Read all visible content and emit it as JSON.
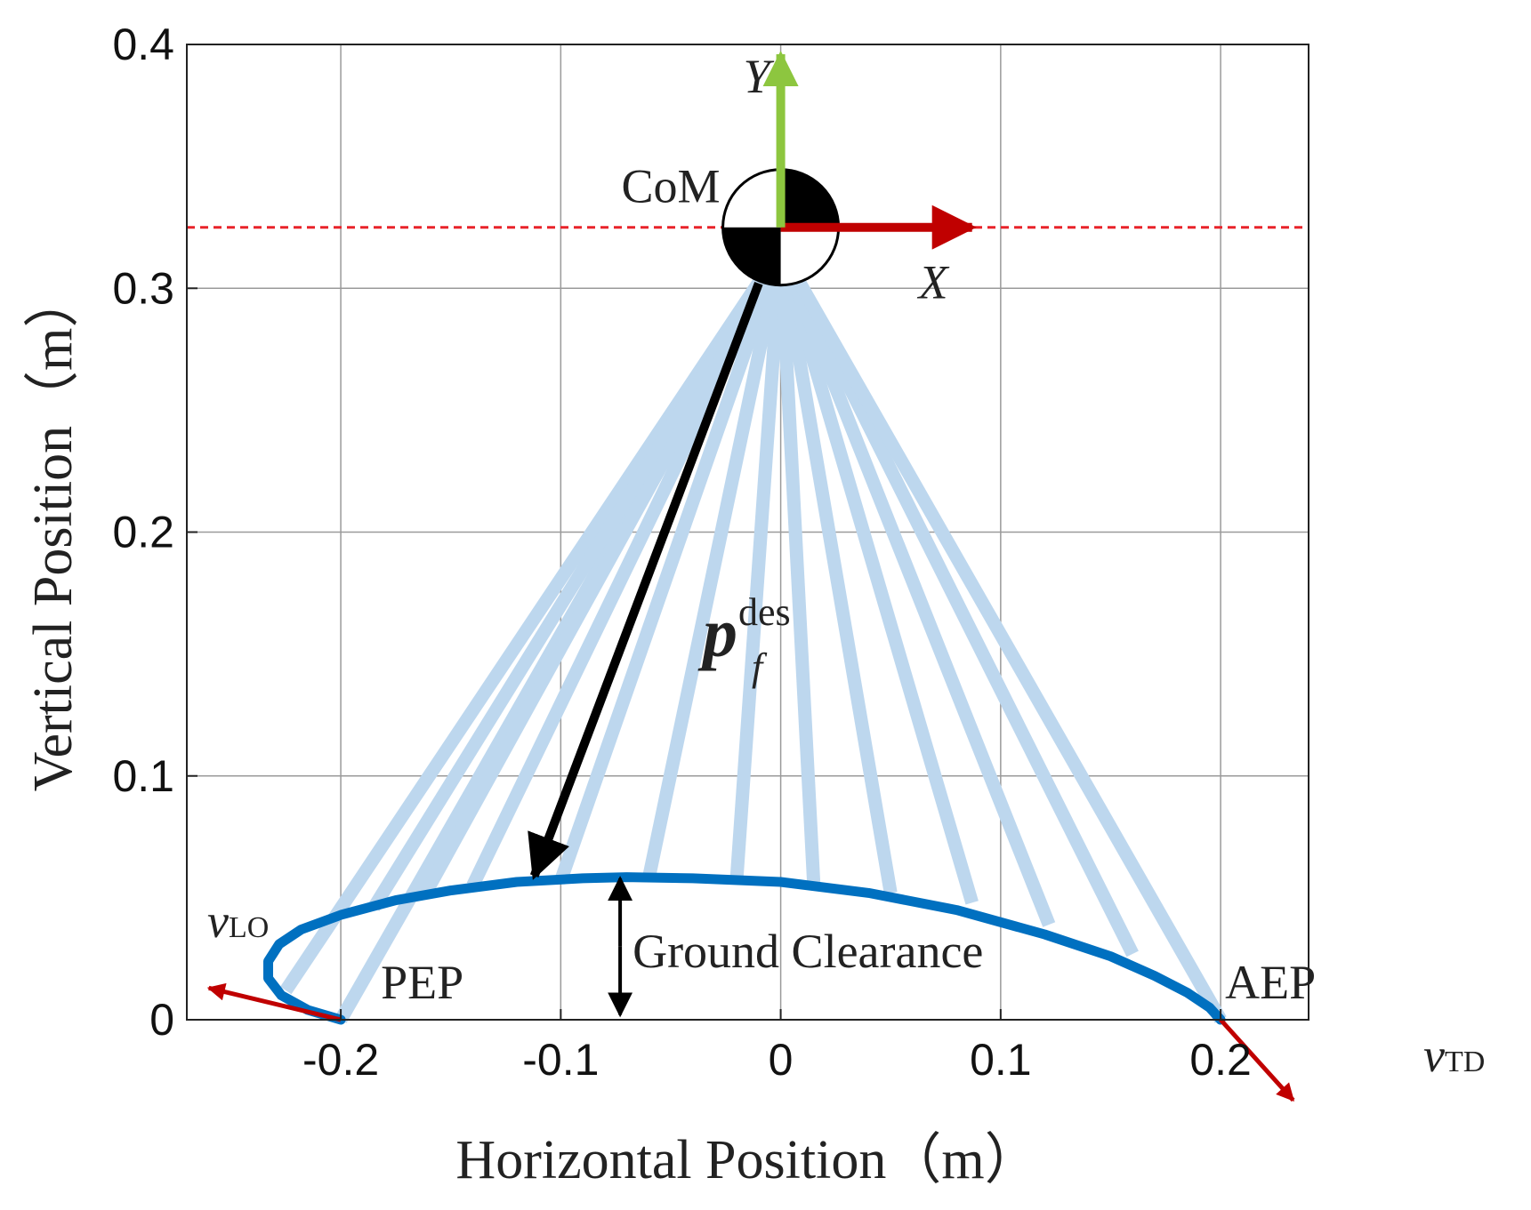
{
  "chart_data": {
    "type": "line",
    "xlabel": "Horizontal Position（m）",
    "ylabel": "Vertical Position（m）",
    "xlim": [
      -0.27,
      0.24
    ],
    "ylim": [
      0,
      0.4
    ],
    "x_ticks": [
      -0.2,
      -0.1,
      0,
      0.1,
      0.2
    ],
    "y_ticks": [
      0,
      0.1,
      0.2,
      0.3,
      0.4
    ],
    "x_tick_labels": [
      "-0.2",
      "-0.1",
      "0",
      "0.1",
      "0.2"
    ],
    "y_tick_labels": [
      "0",
      "0.1",
      "0.2",
      "0.3",
      "0.4"
    ],
    "grid": true,
    "com": {
      "x": 0,
      "y": 0.325,
      "label": "CoM"
    },
    "com_height_line": {
      "y": 0.325,
      "color": "#e8232a"
    },
    "frame_axes": {
      "x": {
        "label": "X",
        "color": "#c00000",
        "to": [
          0.087,
          0.325
        ]
      },
      "y": {
        "label": "Y",
        "color": "#8dc63f",
        "to": [
          0,
          0.396
        ]
      }
    },
    "series": [
      {
        "role": "foot-trajectory",
        "color": "#0070c0",
        "x": [
          -0.2,
          -0.215,
          -0.227,
          -0.233,
          -0.233,
          -0.228,
          -0.218,
          -0.2,
          -0.175,
          -0.15,
          -0.12,
          -0.09,
          -0.07,
          -0.04,
          0.0,
          0.04,
          0.08,
          0.12,
          0.15,
          0.17,
          0.185,
          0.195,
          0.2
        ],
        "y": [
          0.0,
          0.004,
          0.01,
          0.017,
          0.024,
          0.031,
          0.037,
          0.043,
          0.049,
          0.053,
          0.0565,
          0.058,
          0.0585,
          0.058,
          0.0565,
          0.052,
          0.045,
          0.035,
          0.026,
          0.018,
          0.011,
          0.005,
          0.0
        ]
      }
    ],
    "leg_lines": {
      "color": "#bdd7ee",
      "foot_points": [
        [
          -0.225,
          0.012
        ],
        [
          -0.2,
          0.0
        ],
        [
          -0.185,
          0.046
        ],
        [
          -0.162,
          0.051
        ],
        [
          -0.14,
          0.055
        ],
        [
          -0.1,
          0.057
        ],
        [
          -0.06,
          0.058
        ],
        [
          -0.02,
          0.058
        ],
        [
          0.015,
          0.056
        ],
        [
          0.05,
          0.052
        ],
        [
          0.087,
          0.048
        ],
        [
          0.122,
          0.039
        ],
        [
          0.16,
          0.027
        ],
        [
          0.2,
          0.0
        ]
      ]
    },
    "desired_foot_vector": {
      "from": [
        -0.01,
        0.302
      ],
      "to": [
        -0.112,
        0.059
      ],
      "color": "#000000"
    },
    "velocity_arrows": [
      {
        "name": "v_LO",
        "from": [
          -0.2,
          0.0
        ],
        "to": [
          -0.26,
          0.013
        ],
        "color": "#c00000"
      },
      {
        "name": "v_TD",
        "from": [
          0.2,
          0.0
        ],
        "to": [
          0.233,
          -0.033
        ],
        "color": "#c00000"
      }
    ],
    "ground_clearance": {
      "x": -0.073,
      "from": 0.002,
      "to": 0.058,
      "label": "Ground Clearance"
    },
    "point_labels": {
      "pep": "PEP",
      "aep": "AEP"
    },
    "vector_label": {
      "base": "p",
      "sub": "f",
      "sup": "des"
    },
    "velocity_labels": {
      "lo_base": "v",
      "lo_sub": "LO",
      "td_base": "v",
      "td_sub": "TD"
    }
  }
}
